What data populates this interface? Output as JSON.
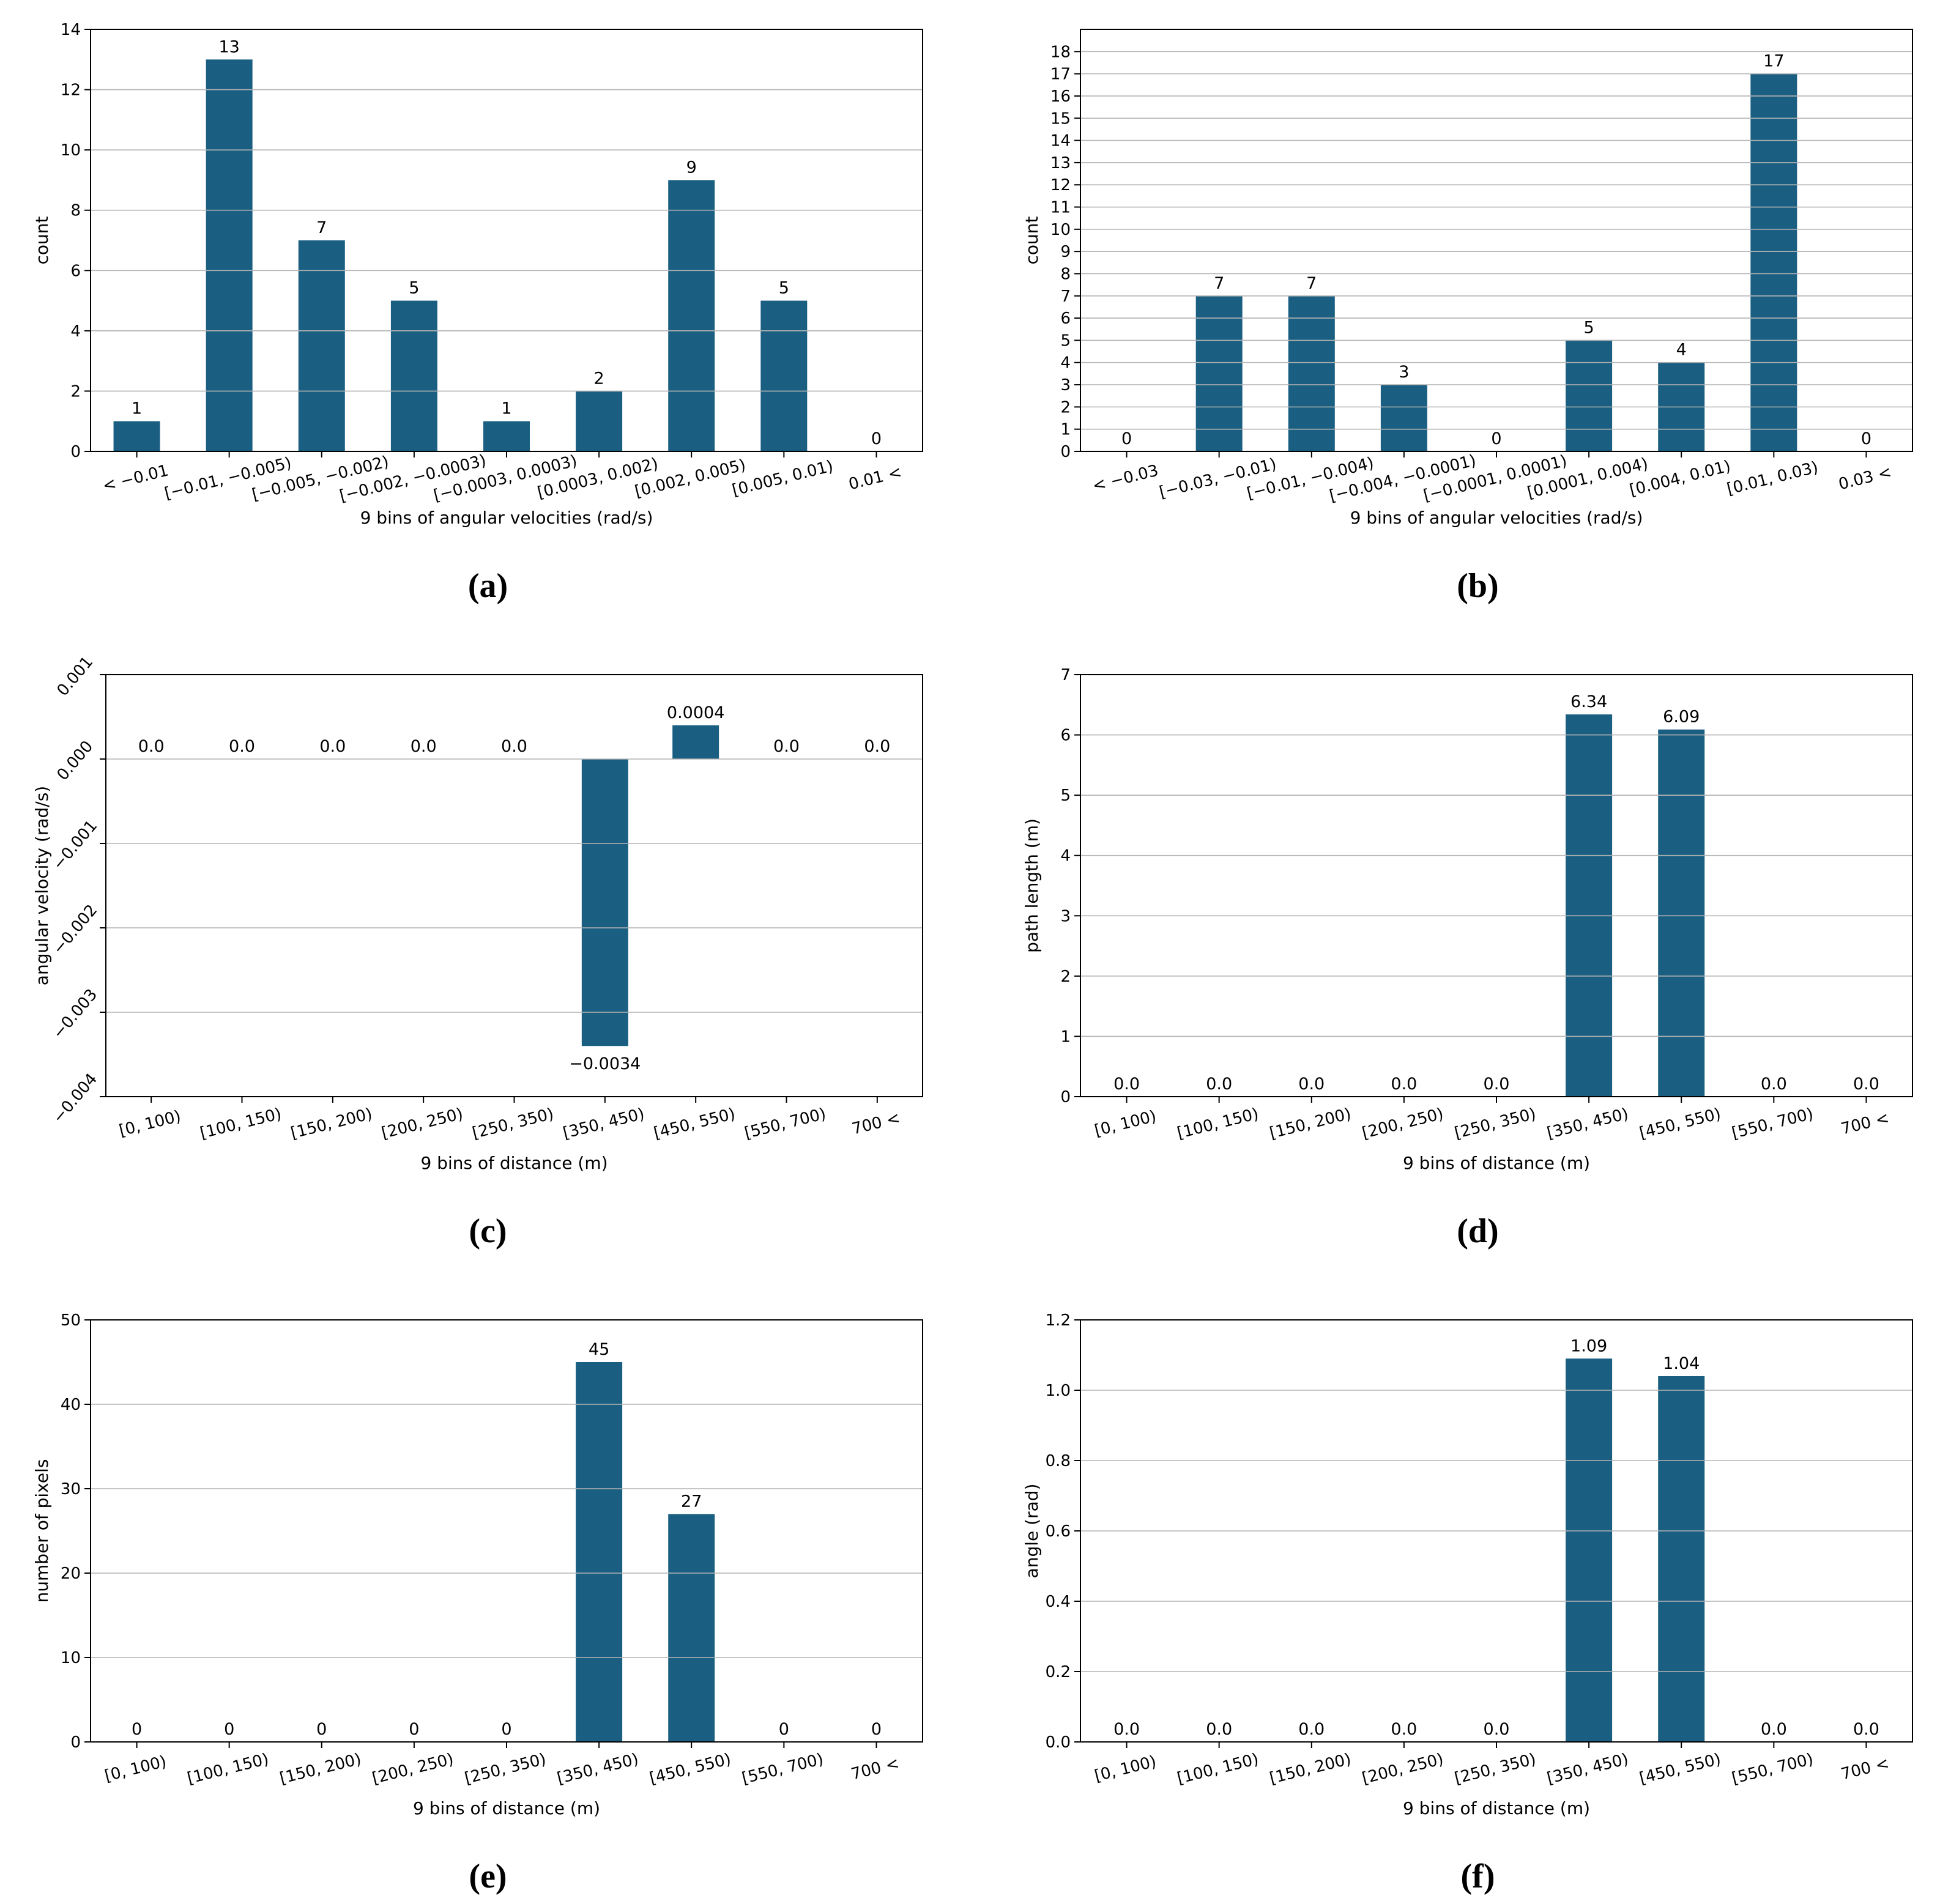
{
  "figure_style": {
    "bar_color": "#1a5f82",
    "grid_color": "#b3b3b3",
    "spine_color": "#000000",
    "text_color": "#000000"
  },
  "chart_data": [
    {
      "id": "a",
      "type": "bar",
      "caption": "(a)",
      "xlabel": "9 bins of angular velocities (rad/s)",
      "ylabel": "count",
      "categories": [
        "< −0.01",
        "[−0.01, −0.005)",
        "[−0.005, −0.002)",
        "[−0.002, −0.0003)",
        "[−0.0003, 0.0003)",
        "[0.0003, 0.002)",
        "[0.002, 0.005)",
        "[0.005, 0.01)",
        "0.01 <"
      ],
      "values": [
        1,
        13,
        7,
        5,
        1,
        2,
        9,
        5,
        0
      ],
      "bar_labels": [
        "1",
        "13",
        "7",
        "5",
        "1",
        "2",
        "9",
        "5",
        "0"
      ],
      "ylim": [
        0,
        14
      ],
      "yticks": [
        0,
        2,
        4,
        6,
        8,
        10,
        12,
        14
      ],
      "ytick_labels": [
        "0",
        "2",
        "4",
        "6",
        "8",
        "10",
        "12",
        "14"
      ],
      "xtick_rotation": -14,
      "ytick_rotation": 0,
      "grid": "y",
      "legend": "none"
    },
    {
      "id": "b",
      "type": "bar",
      "caption": "(b)",
      "xlabel": "9 bins of angular velocities (rad/s)",
      "ylabel": "count",
      "categories": [
        "< −0.03",
        "[−0.03, −0.01)",
        "[−0.01, −0.004)",
        "[−0.004, −0.0001)",
        "[−0.0001, 0.0001)",
        "[0.0001, 0.004)",
        "[0.004, 0.01)",
        "[0.01, 0.03)",
        "0.03 <"
      ],
      "values": [
        0,
        7,
        7,
        3,
        0,
        5,
        4,
        17,
        0
      ],
      "bar_labels": [
        "0",
        "7",
        "7",
        "3",
        "0",
        "5",
        "4",
        "17",
        "0"
      ],
      "ylim": [
        0,
        19
      ],
      "yticks": [
        0,
        1,
        2,
        3,
        4,
        5,
        6,
        7,
        8,
        9,
        10,
        11,
        12,
        13,
        14,
        15,
        16,
        17,
        18
      ],
      "ytick_labels": [
        "0",
        "1",
        "2",
        "3",
        "4",
        "5",
        "6",
        "7",
        "8",
        "9",
        "10",
        "11",
        "12",
        "13",
        "14",
        "15",
        "16",
        "17",
        "18"
      ],
      "xtick_rotation": -14,
      "ytick_rotation": 0,
      "grid": "y",
      "legend": "none"
    },
    {
      "id": "c",
      "type": "bar",
      "caption": "(c)",
      "xlabel": "9 bins of distance (m)",
      "ylabel": "angular velocity (rad/s)",
      "categories": [
        "[0, 100)",
        "[100, 150)",
        "[150, 200)",
        "[200, 250)",
        "[250, 350)",
        "[350, 450)",
        "[450, 550)",
        "[550, 700)",
        "700 <"
      ],
      "values": [
        0,
        0,
        0,
        0,
        0,
        -0.0034,
        0.0004,
        0,
        0
      ],
      "bar_labels": [
        "0.0",
        "0.0",
        "0.0",
        "0.0",
        "0.0",
        "−0.0034",
        "0.0004",
        "0.0",
        "0.0"
      ],
      "ylim": [
        -0.004,
        0.001
      ],
      "yticks": [
        0.001,
        0,
        -0.001,
        -0.002,
        -0.003,
        -0.004
      ],
      "ytick_labels": [
        "0.001",
        "0.000",
        "−0.001",
        "−0.002",
        "−0.003",
        "−0.004"
      ],
      "xtick_rotation": -14,
      "ytick_rotation": -50,
      "grid": "y",
      "legend": "none"
    },
    {
      "id": "d",
      "type": "bar",
      "caption": "(d)",
      "xlabel": "9 bins of distance (m)",
      "ylabel": "path length (m)",
      "categories": [
        "[0, 100)",
        "[100, 150)",
        "[150, 200)",
        "[200, 250)",
        "[250, 350)",
        "[350, 450)",
        "[450, 550)",
        "[550, 700)",
        "700 <"
      ],
      "values": [
        0,
        0,
        0,
        0,
        0,
        6.34,
        6.09,
        0,
        0
      ],
      "bar_labels": [
        "0.0",
        "0.0",
        "0.0",
        "0.0",
        "0.0",
        "6.34",
        "6.09",
        "0.0",
        "0.0"
      ],
      "ylim": [
        0,
        7
      ],
      "yticks": [
        0,
        1,
        2,
        3,
        4,
        5,
        6,
        7
      ],
      "ytick_labels": [
        "0",
        "1",
        "2",
        "3",
        "4",
        "5",
        "6",
        "7"
      ],
      "xtick_rotation": -14,
      "ytick_rotation": 0,
      "grid": "y",
      "legend": "none"
    },
    {
      "id": "e",
      "type": "bar",
      "caption": "(e)",
      "xlabel": "9 bins of distance (m)",
      "ylabel": "number of pixels",
      "categories": [
        "[0, 100)",
        "[100, 150)",
        "[150, 200)",
        "[200, 250)",
        "[250, 350)",
        "[350, 450)",
        "[450, 550)",
        "[550, 700)",
        "700 <"
      ],
      "values": [
        0,
        0,
        0,
        0,
        0,
        45,
        27,
        0,
        0
      ],
      "bar_labels": [
        "0",
        "0",
        "0",
        "0",
        "0",
        "45",
        "27",
        "0",
        "0"
      ],
      "ylim": [
        0,
        50
      ],
      "yticks": [
        0,
        10,
        20,
        30,
        40,
        50
      ],
      "ytick_labels": [
        "0",
        "10",
        "20",
        "30",
        "40",
        "50"
      ],
      "xtick_rotation": -14,
      "ytick_rotation": 0,
      "grid": "y",
      "legend": "none"
    },
    {
      "id": "f",
      "type": "bar",
      "caption": "(f)",
      "xlabel": "9 bins of distance (m)",
      "ylabel": "angle (rad)",
      "categories": [
        "[0, 100)",
        "[100, 150)",
        "[150, 200)",
        "[200, 250)",
        "[250, 350)",
        "[350, 450)",
        "[450, 550)",
        "[550, 700)",
        "700 <"
      ],
      "values": [
        0,
        0,
        0,
        0,
        0,
        1.09,
        1.04,
        0,
        0
      ],
      "bar_labels": [
        "0.0",
        "0.0",
        "0.0",
        "0.0",
        "0.0",
        "1.09",
        "1.04",
        "0.0",
        "0.0"
      ],
      "ylim": [
        0,
        1.2
      ],
      "yticks": [
        0,
        0.2,
        0.4,
        0.6,
        0.8,
        1.0,
        1.2
      ],
      "ytick_labels": [
        "0.0",
        "0.2",
        "0.4",
        "0.6",
        "0.8",
        "1.0",
        "1.2"
      ],
      "xtick_rotation": -14,
      "ytick_rotation": 0,
      "grid": "y",
      "legend": "none"
    }
  ]
}
